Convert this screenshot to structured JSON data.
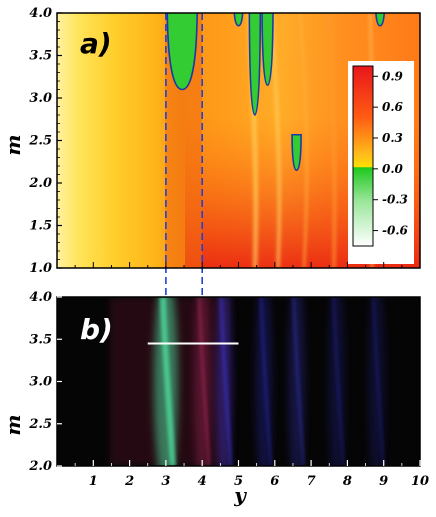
{
  "chart_data": [
    {
      "type": "heatmap",
      "panel_label": "a)",
      "xlabel": "",
      "ylabel": "m",
      "xlim": [
        0,
        10
      ],
      "ylim": [
        1.0,
        4.0
      ],
      "yticks": [
        "1.0",
        "1.5",
        "2.0",
        "2.5",
        "3.0",
        "3.5",
        "4.0"
      ],
      "colorbar": {
        "ticks": [
          "0.9",
          "0.6",
          "0.3",
          "0.0",
          "-0.3",
          "-0.6"
        ],
        "range": [
          -0.75,
          1.0
        ],
        "colors": {
          "positive_high": "#e8161b",
          "positive_mid": "#ff8c1a",
          "zero": "#ffd400",
          "negative": "#33cc33",
          "negative_low": "#ffffff"
        }
      },
      "negative_regions": [
        {
          "x_center": 3.45,
          "m_top": 4.0,
          "m_bottom": 3.1
        },
        {
          "x_center": 5.0,
          "m_top": 4.0,
          "m_bottom": 3.85
        },
        {
          "x_center": 5.45,
          "m_top": 4.0,
          "m_bottom": 2.8
        },
        {
          "x_center": 5.8,
          "m_top": 4.0,
          "m_bottom": 3.15
        },
        {
          "x_center": 6.6,
          "m_top": 2.45,
          "m_bottom": 2.15
        },
        {
          "x_center": 8.9,
          "m_top": 4.0,
          "m_bottom": 3.85
        }
      ],
      "dashed_markers_x": [
        3.0,
        4.0
      ]
    },
    {
      "type": "heatmap",
      "panel_label": "b)",
      "xlabel": "y",
      "ylabel": "m",
      "xlim": [
        0,
        10
      ],
      "ylim": [
        2.0,
        4.0
      ],
      "xticks": [
        "1",
        "2",
        "3",
        "4",
        "5",
        "6",
        "7",
        "8",
        "9",
        "10"
      ],
      "yticks": [
        "2.0",
        "2.5",
        "3.0",
        "3.5",
        "4.0"
      ],
      "background": "#000000",
      "segment": {
        "x_start": 2.5,
        "x_end": 5.0,
        "m": 3.45
      },
      "bands": [
        {
          "x": 3.0,
          "color": "#4fe0a0",
          "intensity": 0.75
        },
        {
          "x": 4.0,
          "color": "#c8326e",
          "intensity": 0.45
        },
        {
          "x": 4.6,
          "color": "#4040ff",
          "intensity": 0.5
        },
        {
          "x": 5.7,
          "color": "#3a3aff",
          "intensity": 0.35
        },
        {
          "x": 6.6,
          "color": "#4a4aff",
          "intensity": 0.35
        },
        {
          "x": 7.7,
          "color": "#3535e0",
          "intensity": 0.3
        },
        {
          "x": 8.8,
          "color": "#3030d0",
          "intensity": 0.3
        }
      ]
    }
  ]
}
